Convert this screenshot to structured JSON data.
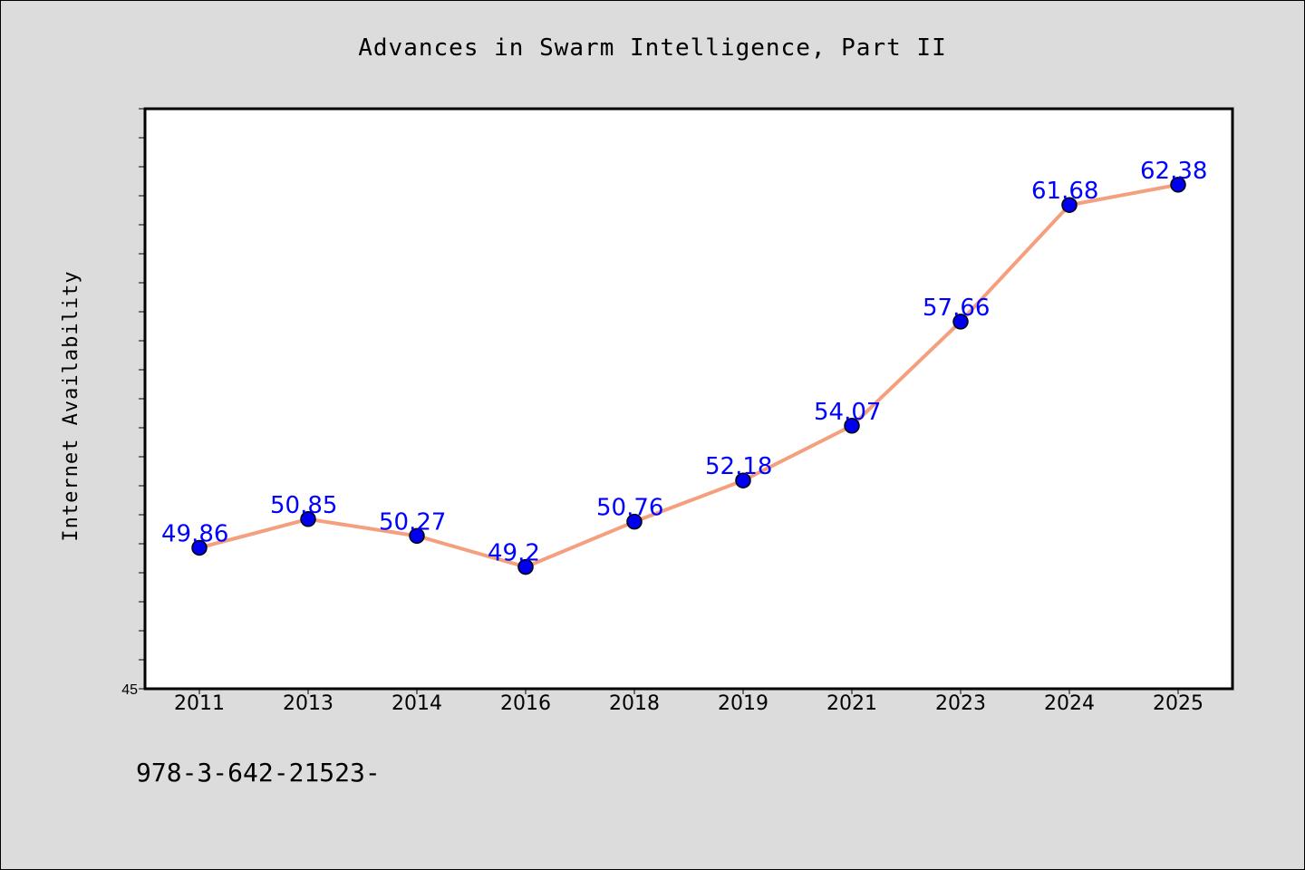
{
  "chart_data": {
    "type": "line",
    "title": "Advances in Swarm Intelligence, Part II",
    "xlabel": "",
    "ylabel": "Internet Availability",
    "categories": [
      "2011",
      "2013",
      "2014",
      "2016",
      "2018",
      "2019",
      "2021",
      "2023",
      "2024",
      "2025"
    ],
    "series": [
      {
        "values": [
          49.86,
          50.85,
          50.27,
          49.2,
          50.76,
          52.18,
          54.07,
          57.66,
          61.68,
          62.38
        ]
      }
    ],
    "data_labels": [
      "49.86",
      "50.85",
      "50.27",
      "49.2",
      "50.76",
      "52.18",
      "54.07",
      "57.66",
      "61.68",
      "62.38"
    ],
    "ylim": [
      45,
      65
    ],
    "y_tick_labels": [
      "45"
    ],
    "grid": false,
    "legend": "none"
  },
  "footer": {
    "text": "978-3-642-21523-"
  },
  "colors": {
    "background": "#dcdcdc",
    "plot_background": "#ffffff",
    "line": "#f4a07e",
    "marker": "#0000ee",
    "data_label": "#0000ff"
  }
}
